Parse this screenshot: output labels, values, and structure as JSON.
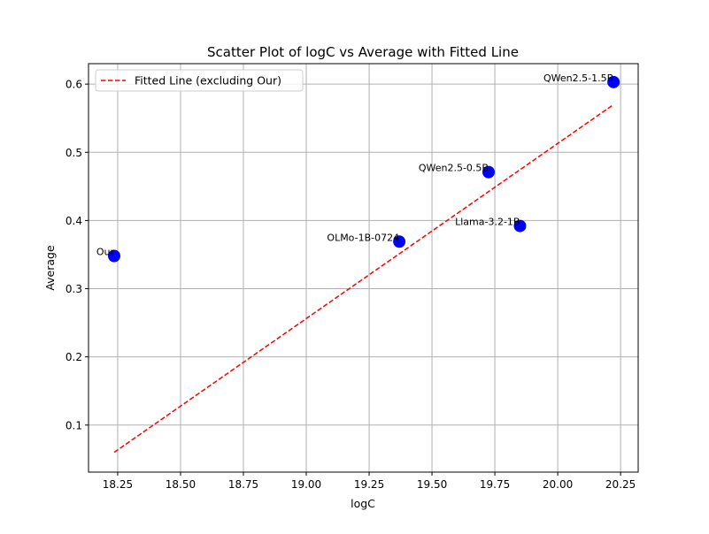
{
  "chart_data": {
    "type": "scatter",
    "title": "Scatter Plot of logC vs Average with Fitted Line",
    "xlabel": "logC",
    "ylabel": "Average",
    "xlim": [
      18.134,
      20.32
    ],
    "ylim": [
      0.031,
      0.63
    ],
    "xticks": [
      "18.25",
      "18.50",
      "18.75",
      "19.00",
      "19.25",
      "19.50",
      "19.75",
      "20.00",
      "20.25"
    ],
    "yticks": [
      "0.1",
      "0.2",
      "0.3",
      "0.4",
      "0.5",
      "0.6"
    ],
    "grid": true,
    "legend_placement": "top-left",
    "points": [
      {
        "label": "Our",
        "x": 18.236,
        "y": 0.348
      },
      {
        "label": "OLMo-1B-0724",
        "x": 19.37,
        "y": 0.369
      },
      {
        "label": "QWen2.5-0.5B",
        "x": 19.725,
        "y": 0.471
      },
      {
        "label": "Llama-3.2-1B",
        "x": 19.85,
        "y": 0.392
      },
      {
        "label": "QWen2.5-1.5B",
        "x": 20.222,
        "y": 0.603
      }
    ],
    "fitted_line": {
      "name": "Fitted Line (excluding Our)",
      "x": [
        18.236,
        20.222
      ],
      "y": [
        0.06,
        0.57
      ]
    },
    "colors": {
      "points": "#0000ff",
      "line": "#ff0000",
      "grid": "#b0b0b0"
    }
  }
}
